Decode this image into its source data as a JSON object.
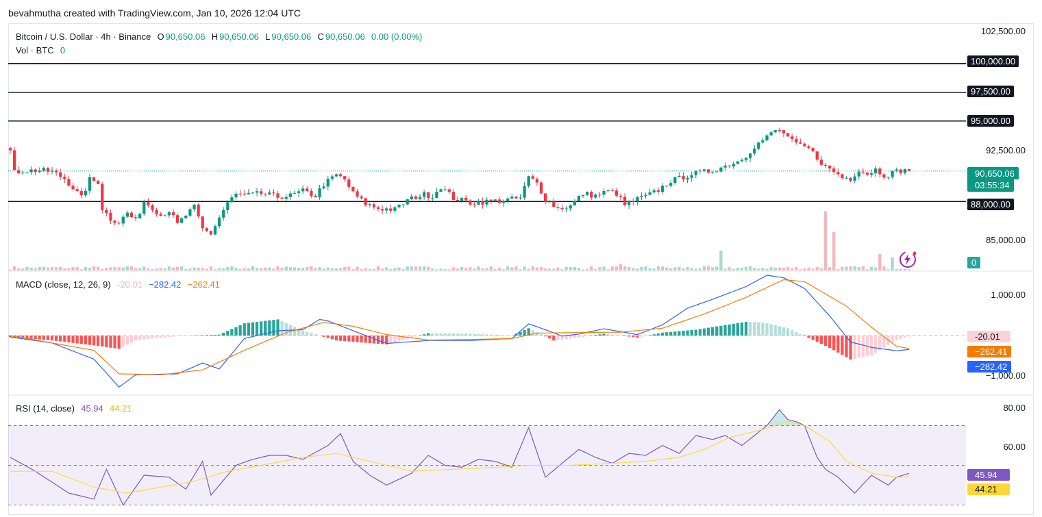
{
  "header": {
    "text": "bevahmutha created with TradingView.com, Jan 10, 2026 12:04 UTC"
  },
  "legend": {
    "symbol": "Bitcoin / U.S. Dollar · 4h · Binance",
    "o_label": "O",
    "o_value": "90,650.06",
    "h_label": "H",
    "h_value": "90,650.06",
    "l_label": "L",
    "l_value": "90,650.06",
    "c_label": "C",
    "c_value": "90,650.06",
    "change": "0.00 (0.00%)",
    "vol_label": "Vol · BTC",
    "vol_value": "0"
  },
  "macd_legend": {
    "label": "MACD (close, 12, 26, 9)",
    "hist": "-20.01",
    "macd": "−282.42",
    "signal": "−262.41"
  },
  "rsi_legend": {
    "label": "RSI (14, close)",
    "rsi": "45.94",
    "ma": "44.21"
  },
  "price_axis": {
    "labels": [
      "102,500.00",
      "92,500.00",
      "85,000.00"
    ]
  },
  "levels": [
    {
      "label": "100,000.00",
      "value": 100000
    },
    {
      "label": "97,500.00",
      "value": 97500
    },
    {
      "label": "95,000.00",
      "value": 95000
    },
    {
      "label": "88,000.00",
      "value": 88000
    }
  ],
  "last_price": {
    "label": "90,650.06",
    "countdown": "03:55:34",
    "value": 90650.06
  },
  "vol_tag": "0",
  "macd_axis": {
    "labels": [
      "1,000.00",
      "−1,000.00"
    ]
  },
  "macd_tags": {
    "hist": "-20.01",
    "signal": "−262.41",
    "macd": "−282.42"
  },
  "rsi_axis": {
    "labels": [
      "80.00",
      "60.00"
    ]
  },
  "rsi_tags": {
    "rsi": "45.94",
    "ma": "44.21"
  },
  "colors": {
    "up": "#089981",
    "down": "#f23645",
    "macd": "#2962ff",
    "signal": "#f57c00",
    "rsi": "#7e57c2",
    "rsi_ma": "#fdd835"
  },
  "icons": {
    "flash": "lightning-bolt-icon"
  },
  "chart_data": [
    {
      "type": "candlestick",
      "title": "Bitcoin / U.S. Dollar · 4h · Binance",
      "ylim": [
        82000,
        103500
      ],
      "horizontal_levels": [
        100000,
        97500,
        95000,
        88000
      ],
      "close_anchors": [
        [
          0,
          92400
        ],
        [
          1,
          90500
        ],
        [
          3,
          90700
        ],
        [
          7,
          90700
        ],
        [
          10,
          90600
        ],
        [
          13,
          90000
        ],
        [
          15,
          89200
        ],
        [
          17,
          88300
        ],
        [
          19,
          89900
        ],
        [
          21,
          89700
        ],
        [
          22,
          87400
        ],
        [
          24,
          86500
        ],
        [
          26,
          86200
        ],
        [
          28,
          87000
        ],
        [
          30,
          86300
        ],
        [
          32,
          88000
        ],
        [
          34,
          87500
        ],
        [
          36,
          86800
        ],
        [
          38,
          87200
        ],
        [
          40,
          86000
        ],
        [
          42,
          86800
        ],
        [
          44,
          87500
        ],
        [
          46,
          85600
        ],
        [
          48,
          85200
        ],
        [
          50,
          86600
        ],
        [
          52,
          87900
        ],
        [
          54,
          88600
        ],
        [
          56,
          88500
        ],
        [
          60,
          88700
        ],
        [
          64,
          88400
        ],
        [
          67,
          88500
        ],
        [
          70,
          88900
        ],
        [
          73,
          88500
        ],
        [
          75,
          89500
        ],
        [
          78,
          90300
        ],
        [
          80,
          89900
        ],
        [
          82,
          88700
        ],
        [
          85,
          87800
        ],
        [
          88,
          87400
        ],
        [
          92,
          87300
        ],
        [
          95,
          88100
        ],
        [
          97,
          88400
        ],
        [
          99,
          88600
        ],
        [
          101,
          88500
        ],
        [
          103,
          89300
        ],
        [
          106,
          88300
        ],
        [
          110,
          87900
        ],
        [
          114,
          88000
        ],
        [
          118,
          88100
        ],
        [
          122,
          88300
        ],
        [
          124,
          90100
        ],
        [
          126,
          89600
        ],
        [
          128,
          88200
        ],
        [
          131,
          87400
        ],
        [
          134,
          87600
        ],
        [
          137,
          88700
        ],
        [
          140,
          88500
        ],
        [
          143,
          88900
        ],
        [
          145,
          88700
        ],
        [
          147,
          87700
        ],
        [
          150,
          88200
        ],
        [
          153,
          88600
        ],
        [
          155,
          89000
        ],
        [
          158,
          89800
        ],
        [
          160,
          90000
        ],
        [
          163,
          90400
        ],
        [
          165,
          90500
        ],
        [
          168,
          90700
        ],
        [
          171,
          91100
        ],
        [
          174,
          91500
        ],
        [
          176,
          92000
        ],
        [
          178,
          92800
        ],
        [
          181,
          93600
        ],
        [
          183,
          94200
        ],
        [
          185,
          94000
        ],
        [
          187,
          93200
        ],
        [
          189,
          92800
        ],
        [
          191,
          92600
        ],
        [
          193,
          91800
        ],
        [
          195,
          91000
        ],
        [
          197,
          90600
        ],
        [
          199,
          90100
        ],
        [
          201,
          90000
        ],
        [
          203,
          90800
        ],
        [
          205,
          90400
        ],
        [
          207,
          90800
        ],
        [
          209,
          90300
        ],
        [
          211,
          90500
        ],
        [
          213,
          90700
        ],
        [
          215,
          90650
        ]
      ],
      "volume_spikes": [
        [
          24,
          3
        ],
        [
          58,
          4
        ],
        [
          146,
          6
        ],
        [
          155,
          4
        ],
        [
          170,
          18
        ],
        [
          195,
          54
        ],
        [
          197,
          35
        ],
        [
          208,
          15
        ],
        [
          211,
          12
        ]
      ]
    },
    {
      "type": "line",
      "title": "MACD (close, 12, 26, 9)",
      "ylim": [
        -1200,
        1300
      ],
      "series": [
        {
          "name": "MACD",
          "anchors": [
            [
              0,
              -30
            ],
            [
              10,
              -150
            ],
            [
              20,
              -480
            ],
            [
              26,
              -1050
            ],
            [
              30,
              -800
            ],
            [
              40,
              -780
            ],
            [
              46,
              -560
            ],
            [
              50,
              -680
            ],
            [
              56,
              -60
            ],
            [
              64,
              100
            ],
            [
              70,
              120
            ],
            [
              74,
              330
            ],
            [
              76,
              300
            ],
            [
              82,
              100
            ],
            [
              90,
              -160
            ],
            [
              100,
              -100
            ],
            [
              110,
              -100
            ],
            [
              120,
              -60
            ],
            [
              124,
              240
            ],
            [
              128,
              120
            ],
            [
              132,
              -10
            ],
            [
              136,
              30
            ],
            [
              142,
              140
            ],
            [
              146,
              80
            ],
            [
              150,
              20
            ],
            [
              156,
              220
            ],
            [
              162,
              560
            ],
            [
              168,
              740
            ],
            [
              176,
              1000
            ],
            [
              181,
              1230
            ],
            [
              185,
              1180
            ],
            [
              190,
              960
            ],
            [
              196,
              400
            ],
            [
              201,
              -130
            ],
            [
              206,
              -240
            ],
            [
              212,
              -310
            ],
            [
              215,
              -282
            ]
          ]
        },
        {
          "name": "Signal",
          "anchors": [
            [
              0,
              0
            ],
            [
              20,
              -300
            ],
            [
              26,
              -780
            ],
            [
              36,
              -800
            ],
            [
              46,
              -700
            ],
            [
              56,
              -300
            ],
            [
              66,
              60
            ],
            [
              75,
              270
            ],
            [
              82,
              190
            ],
            [
              90,
              20
            ],
            [
              100,
              -90
            ],
            [
              110,
              -80
            ],
            [
              120,
              -60
            ],
            [
              126,
              50
            ],
            [
              134,
              60
            ],
            [
              146,
              70
            ],
            [
              156,
              150
            ],
            [
              166,
              440
            ],
            [
              176,
              780
            ],
            [
              185,
              1140
            ],
            [
              190,
              1100
            ],
            [
              200,
              600
            ],
            [
              206,
              170
            ],
            [
              212,
              -220
            ],
            [
              215,
              -262
            ]
          ]
        }
      ],
      "histogram_anchors": [
        [
          0,
          -30
        ],
        [
          10,
          -100
        ],
        [
          20,
          -200
        ],
        [
          26,
          -270
        ],
        [
          30,
          -100
        ],
        [
          40,
          -10
        ],
        [
          50,
          20
        ],
        [
          56,
          250
        ],
        [
          64,
          330
        ],
        [
          70,
          100
        ],
        [
          78,
          -100
        ],
        [
          90,
          -180
        ],
        [
          100,
          50
        ],
        [
          110,
          40
        ],
        [
          120,
          0
        ],
        [
          124,
          150
        ],
        [
          130,
          -100
        ],
        [
          136,
          -40
        ],
        [
          142,
          40
        ],
        [
          150,
          -40
        ],
        [
          156,
          60
        ],
        [
          164,
          120
        ],
        [
          170,
          200
        ],
        [
          176,
          280
        ],
        [
          180,
          270
        ],
        [
          186,
          150
        ],
        [
          196,
          -250
        ],
        [
          201,
          -490
        ],
        [
          206,
          -400
        ],
        [
          212,
          -90
        ],
        [
          215,
          -20
        ]
      ]
    },
    {
      "type": "line",
      "title": "RSI (14, close)",
      "ylim": [
        25,
        85
      ],
      "bands": [
        70,
        50,
        30
      ],
      "series": [
        {
          "name": "RSI",
          "anchors": [
            [
              0,
              54
            ],
            [
              6,
              47
            ],
            [
              14,
              36
            ],
            [
              20,
              33
            ],
            [
              23,
              48
            ],
            [
              27,
              30
            ],
            [
              32,
              45
            ],
            [
              38,
              44
            ],
            [
              42,
              38
            ],
            [
              46,
              52
            ],
            [
              48,
              35
            ],
            [
              54,
              50
            ],
            [
              58,
              53
            ],
            [
              62,
              55
            ],
            [
              66,
              55
            ],
            [
              70,
              53
            ],
            [
              76,
              60
            ],
            [
              79,
              66
            ],
            [
              82,
              52
            ],
            [
              86,
              45
            ],
            [
              90,
              40
            ],
            [
              96,
              46
            ],
            [
              100,
              55
            ],
            [
              104,
              50
            ],
            [
              108,
              49
            ],
            [
              112,
              53
            ],
            [
              116,
              52
            ],
            [
              120,
              49
            ],
            [
              124,
              69
            ],
            [
              128,
              44
            ],
            [
              132,
              51
            ],
            [
              136,
              58
            ],
            [
              140,
              54
            ],
            [
              144,
              51
            ],
            [
              148,
              56
            ],
            [
              152,
              55
            ],
            [
              156,
              60
            ],
            [
              160,
              56
            ],
            [
              164,
              65
            ],
            [
              168,
              63
            ],
            [
              171,
              65
            ],
            [
              175,
              60
            ],
            [
              178,
              65
            ],
            [
              181,
              70
            ],
            [
              184,
              78
            ],
            [
              186,
              73
            ],
            [
              188,
              72
            ],
            [
              190,
              70
            ],
            [
              193,
              54
            ],
            [
              195,
              48
            ],
            [
              198,
              44
            ],
            [
              202,
              36
            ],
            [
              206,
              45
            ],
            [
              210,
              40
            ],
            [
              212,
              44
            ],
            [
              215,
              45.94
            ]
          ]
        },
        {
          "name": "RSI MA",
          "anchors": [
            [
              0,
              47
            ],
            [
              10,
              47
            ],
            [
              20,
              39
            ],
            [
              28,
              36
            ],
            [
              36,
              39
            ],
            [
              44,
              42
            ],
            [
              52,
              47
            ],
            [
              60,
              50
            ],
            [
              70,
              54
            ],
            [
              78,
              56
            ],
            [
              86,
              52
            ],
            [
              96,
              47
            ],
            [
              106,
              48
            ],
            [
              116,
              49
            ],
            [
              124,
              50
            ],
            [
              134,
              50
            ],
            [
              144,
              51
            ],
            [
              152,
              52
            ],
            [
              160,
              54
            ],
            [
              166,
              58
            ],
            [
              172,
              64
            ],
            [
              180,
              68
            ],
            [
              186,
              72
            ],
            [
              190,
              70
            ],
            [
              196,
              62
            ],
            [
              200,
              52
            ],
            [
              206,
              46
            ],
            [
              212,
              44
            ],
            [
              215,
              44.21
            ]
          ]
        }
      ]
    }
  ]
}
